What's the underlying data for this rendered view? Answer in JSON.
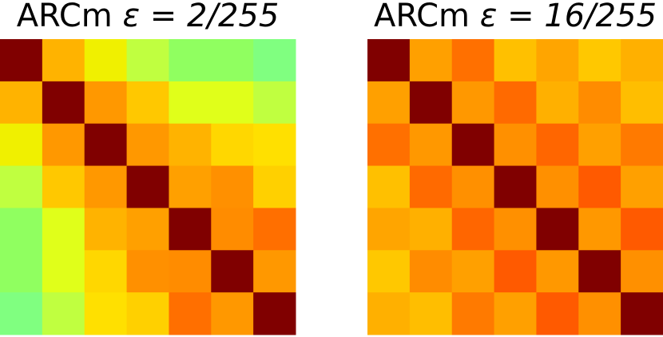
{
  "chart_data": [
    {
      "type": "heatmap",
      "title": "ARCm ε = 2/255",
      "title_prefix": "ARCm ",
      "title_math": "ε = 2/255",
      "xlabel": "",
      "ylabel": "",
      "grid": false,
      "rows": 7,
      "cols": 7,
      "colors": [
        [
          "#800000",
          "#ffb300",
          "#f0f000",
          "#c0ff40",
          "#90ff60",
          "#90ff60",
          "#80ff80"
        ],
        [
          "#ffb300",
          "#800000",
          "#ff9800",
          "#ffc800",
          "#e0ff1a",
          "#e0ff1a",
          "#c0ff40"
        ],
        [
          "#f0f000",
          "#ff9800",
          "#800000",
          "#ff9800",
          "#ffb300",
          "#ffd700",
          "#ffe000"
        ],
        [
          "#c0ff40",
          "#ffc800",
          "#ff9800",
          "#800000",
          "#ffa000",
          "#ff9000",
          "#ffd000"
        ],
        [
          "#90ff60",
          "#e0ff1a",
          "#ffb300",
          "#ffa000",
          "#800000",
          "#ff8c00",
          "#ff6f00"
        ],
        [
          "#90ff60",
          "#e0ff1a",
          "#ffd700",
          "#ff9000",
          "#ff8c00",
          "#800000",
          "#ff9800"
        ],
        [
          "#80ff80",
          "#c0ff40",
          "#ffe000",
          "#ffd000",
          "#ff6f00",
          "#ff9800",
          "#800000"
        ]
      ]
    },
    {
      "type": "heatmap",
      "title": "ARCm ε = 16/255",
      "title_prefix": "ARCm ",
      "title_math": "ε = 16/255",
      "xlabel": "",
      "ylabel": "",
      "grid": false,
      "rows": 7,
      "cols": 7,
      "colors": [
        [
          "#800000",
          "#ffa000",
          "#ff7000",
          "#ffc000",
          "#ffa500",
          "#ffc800",
          "#ffb000"
        ],
        [
          "#ffa000",
          "#800000",
          "#ff9800",
          "#ff6a00",
          "#ffb000",
          "#ff8c00",
          "#ffbe00"
        ],
        [
          "#ff7000",
          "#ff9800",
          "#800000",
          "#ff9000",
          "#ff6600",
          "#ffa000",
          "#ff7a00"
        ],
        [
          "#ffc000",
          "#ff6a00",
          "#ff9000",
          "#800000",
          "#ff9000",
          "#ff5a00",
          "#ffa000"
        ],
        [
          "#ffa500",
          "#ffb000",
          "#ff6600",
          "#ff9000",
          "#800000",
          "#ff9800",
          "#ff5a00"
        ],
        [
          "#ffc800",
          "#ff8c00",
          "#ffa000",
          "#ff5a00",
          "#ff9800",
          "#800000",
          "#ff9000"
        ],
        [
          "#ffb000",
          "#ffbe00",
          "#ff7a00",
          "#ffa000",
          "#ff5a00",
          "#ff9000",
          "#800000"
        ]
      ]
    }
  ]
}
